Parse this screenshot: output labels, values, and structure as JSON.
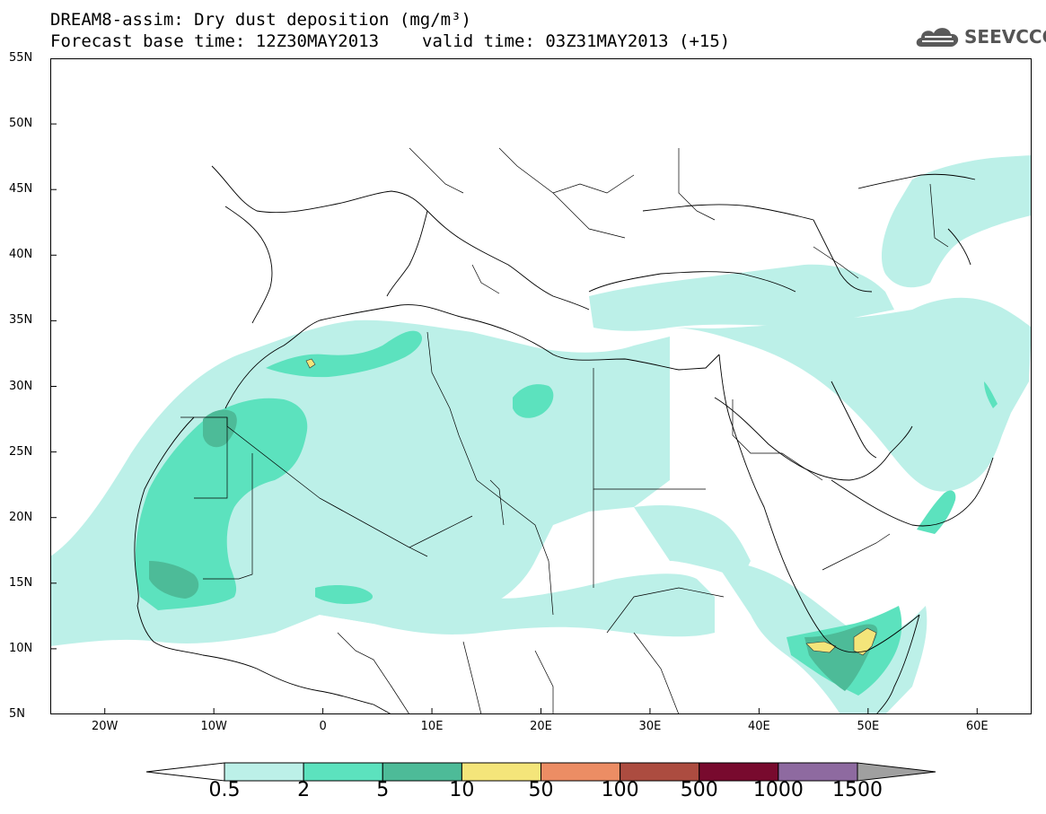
{
  "title": {
    "line1": "DREAM8-assim: Dry dust deposition (mg/m³)",
    "base": "Forecast base time: 12Z30MAY2013",
    "valid": "valid time: 03Z31MAY2013 (+15)"
  },
  "logo": {
    "text": "SEEVCCC",
    "icon": "cloud-logo-icon"
  },
  "axes": {
    "lat_labels": [
      "55N",
      "50N",
      "45N",
      "40N",
      "35N",
      "30N",
      "25N",
      "20N",
      "15N",
      "10N",
      "5N"
    ],
    "lon_labels": [
      "20W",
      "10W",
      "0",
      "10E",
      "20E",
      "30E",
      "40E",
      "50E",
      "60E"
    ],
    "lat_range": [
      5,
      55
    ],
    "lon_range": [
      -25,
      65
    ]
  },
  "legend": {
    "labels": [
      "0.5",
      "2",
      "5",
      "10",
      "50",
      "100",
      "500",
      "1000",
      "1500"
    ],
    "colors": [
      "#ffffff",
      "#bcf0e8",
      "#5ce2be",
      "#4dbb98",
      "#f4e57a",
      "#ec8d64",
      "#ac4c40",
      "#780a2e",
      "#8e6aa0",
      "#a0a0a0"
    ]
  },
  "colors": {
    "coast": "#000000",
    "border": "#000000",
    "frame": "#000000"
  }
}
